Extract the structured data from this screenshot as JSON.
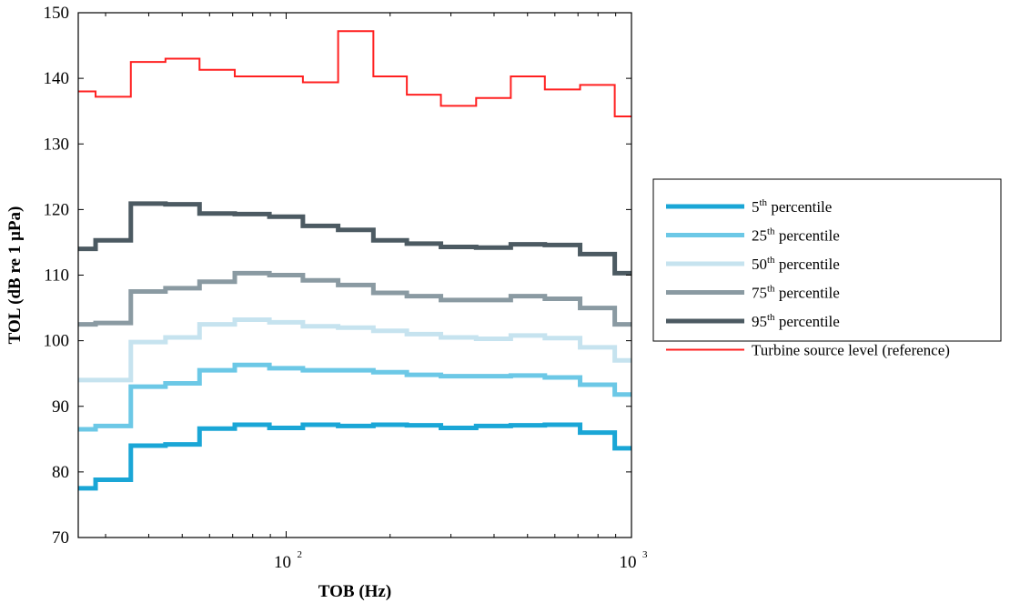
{
  "chart_data": {
    "type": "line",
    "xlabel": "TOB (Hz)",
    "ylabel": "TOL (dB re 1 µPa)",
    "xscale": "log",
    "xlim": [
      25,
      1000
    ],
    "ylim": [
      70,
      150
    ],
    "yticks": [
      70,
      80,
      90,
      100,
      110,
      120,
      130,
      140,
      150
    ],
    "xticks": [
      {
        "base": "10",
        "exp": "2",
        "value": 100
      },
      {
        "base": "10",
        "exp": "3",
        "value": 1000
      }
    ],
    "step": "mid",
    "x": [
      25,
      31.5,
      40,
      50,
      63,
      80,
      100,
      125,
      160,
      200,
      250,
      315,
      400,
      500,
      630,
      800,
      1000
    ],
    "grid": false,
    "legend_position": "right, outside plot",
    "series": [
      {
        "name": "5th percentile",
        "label_base": "5",
        "label_sup": "th",
        "label_rest": " percentile",
        "color": "#1aa6d6",
        "width": 5,
        "values": [
          77.5,
          78.8,
          84,
          84.2,
          86.6,
          87.2,
          86.7,
          87.2,
          87,
          87.2,
          87.1,
          86.7,
          87,
          87.1,
          87.2,
          86,
          83.6
        ]
      },
      {
        "name": "25th percentile",
        "label_base": "25",
        "label_sup": "th",
        "label_rest": " percentile",
        "color": "#6cc8e6",
        "width": 5,
        "values": [
          86.5,
          87,
          93,
          93.5,
          95.5,
          96.3,
          95.8,
          95.5,
          95.5,
          95.2,
          94.8,
          94.6,
          94.6,
          94.7,
          94.4,
          93.3,
          91.8
        ]
      },
      {
        "name": "50th percentile",
        "label_base": "50",
        "label_sup": "th",
        "label_rest": " percentile",
        "color": "#c6e3ef",
        "width": 5,
        "values": [
          94,
          94,
          99.8,
          100.5,
          102.5,
          103.2,
          102.8,
          102.2,
          102,
          101.5,
          101,
          100.5,
          100.3,
          100.8,
          100.4,
          99,
          97
        ]
      },
      {
        "name": "75th percentile",
        "label_base": "75",
        "label_sup": "th",
        "label_rest": " percentile",
        "color": "#8a9aa2",
        "width": 5,
        "values": [
          102.5,
          102.7,
          107.5,
          108,
          109,
          110.3,
          110,
          109.2,
          108.5,
          107.3,
          106.8,
          106.2,
          106.2,
          106.8,
          106.4,
          105,
          102.5
        ]
      },
      {
        "name": "95th percentile",
        "label_base": "95",
        "label_sup": "th",
        "label_rest": " percentile",
        "color": "#4c5a62",
        "width": 5,
        "values": [
          114,
          115.3,
          120.9,
          120.8,
          119.4,
          119.3,
          118.9,
          117.5,
          116.9,
          115.3,
          114.8,
          114.3,
          114.2,
          114.7,
          114.6,
          113.2,
          110.3
        ]
      },
      {
        "name": "Turbine source level (reference)",
        "label_base": "Turbine source level (reference)",
        "label_sup": "",
        "label_rest": "",
        "color": "#ff2020",
        "width": 2,
        "values": [
          138,
          137.2,
          142.5,
          143,
          141.3,
          140.3,
          140.3,
          139.4,
          147.2,
          140.3,
          137.5,
          135.8,
          137,
          140.3,
          138.3,
          139,
          134.2
        ]
      }
    ]
  }
}
